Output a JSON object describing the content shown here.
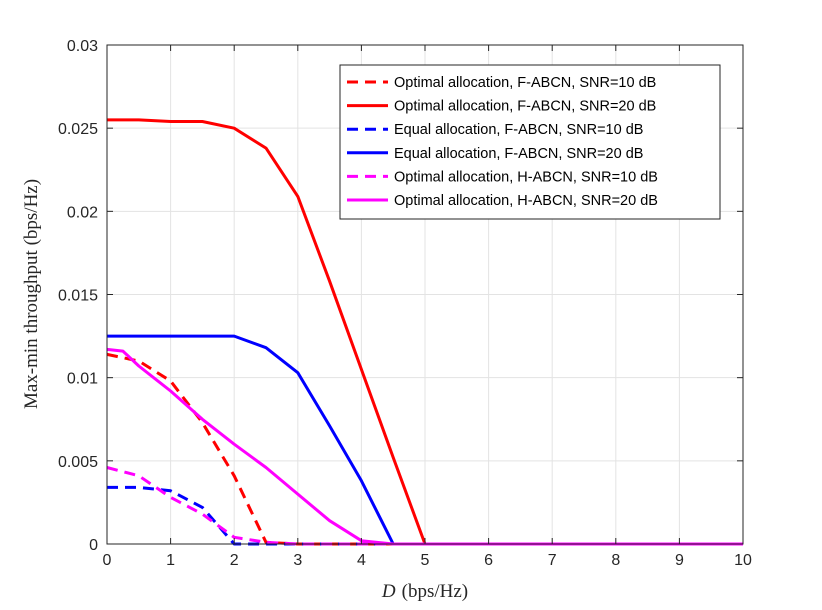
{
  "chart_data": {
    "type": "line",
    "title": "",
    "xlabel_var": "D",
    "xlabel_unit": "(bps/Hz)",
    "ylabel": "Max-min throughput (bps/Hz)",
    "xlim": [
      0,
      10
    ],
    "ylim": [
      0,
      0.03
    ],
    "xticks": [
      "0",
      "1",
      "2",
      "3",
      "4",
      "5",
      "6",
      "7",
      "8",
      "9",
      "10"
    ],
    "yticks": [
      "0",
      "0.005",
      "0.01",
      "0.015",
      "0.02",
      "0.025",
      "0.03"
    ],
    "grid": true,
    "legend_position": "top-right",
    "series": [
      {
        "name": "Optimal allocation, F-ABCN, SNR=10 dB",
        "color": "#ff0000",
        "dash": "dashed",
        "x": [
          0,
          0.5,
          1,
          1.5,
          2,
          2.5,
          3,
          4,
          5,
          6,
          7,
          8,
          9,
          10
        ],
        "y": [
          0.0114,
          0.011,
          0.0098,
          0.0073,
          0.0041,
          0.0001,
          0,
          0,
          0,
          0,
          0,
          0,
          0,
          0
        ]
      },
      {
        "name": "Optimal allocation, F-ABCN, SNR=20 dB",
        "color": "#ff0000",
        "dash": "solid",
        "x": [
          0,
          0.5,
          1,
          1.5,
          2,
          2.5,
          3,
          3.5,
          4,
          4.5,
          5,
          6,
          7,
          8,
          9,
          10
        ],
        "y": [
          0.0255,
          0.0255,
          0.0254,
          0.0254,
          0.025,
          0.0238,
          0.0209,
          0.0158,
          0.0105,
          0.0052,
          0,
          0,
          0,
          0,
          0,
          0
        ]
      },
      {
        "name": "Equal allocation, F-ABCN, SNR=10 dB",
        "color": "#0000ff",
        "dash": "dashed",
        "x": [
          0,
          0.5,
          1,
          1.5,
          2,
          2.5,
          3,
          4,
          5,
          6,
          7,
          8,
          9,
          10
        ],
        "y": [
          0.0034,
          0.0034,
          0.0032,
          0.0022,
          0,
          0,
          0,
          0,
          0,
          0,
          0,
          0,
          0,
          0
        ]
      },
      {
        "name": "Equal allocation, F-ABCN, SNR=20 dB",
        "color": "#0000ff",
        "dash": "solid",
        "x": [
          0,
          0.5,
          1,
          1.5,
          2,
          2.5,
          3,
          3.5,
          4,
          4.5,
          5,
          6,
          7,
          8,
          9,
          10
        ],
        "y": [
          0.0125,
          0.0125,
          0.0125,
          0.0125,
          0.0125,
          0.0118,
          0.0103,
          0.0071,
          0.0038,
          0,
          0,
          0,
          0,
          0,
          0,
          0
        ]
      },
      {
        "name": "Optimal allocation, H-ABCN, SNR=10 dB",
        "color": "#ff00ff",
        "dash": "dashed",
        "x": [
          0,
          0.5,
          1,
          1.5,
          2,
          2.5,
          3,
          4,
          5,
          6,
          7,
          8,
          9,
          10
        ],
        "y": [
          0.0046,
          0.0041,
          0.0028,
          0.0018,
          0.0004,
          0.0001,
          0,
          0,
          0,
          0,
          0,
          0,
          0,
          0
        ]
      },
      {
        "name": "Optimal allocation, H-ABCN, SNR=20 dB",
        "color": "#ff00ff",
        "dash": "solid",
        "x": [
          0,
          0.25,
          0.5,
          1,
          1.5,
          2,
          2.5,
          3,
          3.5,
          4,
          4.5,
          5,
          6,
          7,
          8,
          9,
          10
        ],
        "y": [
          0.0117,
          0.0116,
          0.0107,
          0.0092,
          0.0075,
          0.006,
          0.0046,
          0.003,
          0.0014,
          0.0002,
          0,
          0,
          0,
          0,
          0,
          0,
          0
        ]
      }
    ]
  }
}
